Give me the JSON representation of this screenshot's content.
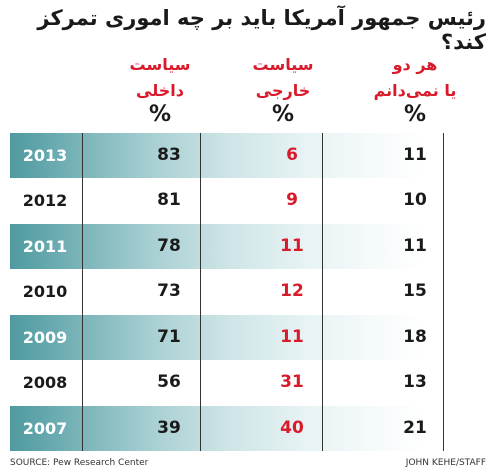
{
  "title": "رئیس جمهور آمریکا باید بر چه اموری تمرکز کند؟",
  "headers": [
    {
      "line1": "سیاست",
      "line2": "داخلی",
      "unit": "%"
    },
    {
      "line1": "سیاست",
      "line2": "خارجی",
      "unit": "%"
    },
    {
      "line1": "هر دو",
      "line2": "یا نمی‌دانم",
      "unit": "%"
    }
  ],
  "chart_data": {
    "type": "table",
    "title": "رئیس جمهور آمریکا باید بر چه اموری تمرکز کند؟",
    "columns": [
      "سیاست داخلی %",
      "سیاست خارجی %",
      "هر دو یا نمی‌دانم %"
    ],
    "rows": [
      {
        "year": "2013",
        "domestic": 83,
        "foreign": 6,
        "both_dont_know": 11
      },
      {
        "year": "2012",
        "domestic": 81,
        "foreign": 9,
        "both_dont_know": 10
      },
      {
        "year": "2011",
        "domestic": 78,
        "foreign": 11,
        "both_dont_know": 11
      },
      {
        "year": "2010",
        "domestic": 73,
        "foreign": 12,
        "both_dont_know": 15
      },
      {
        "year": "2009",
        "domestic": 71,
        "foreign": 11,
        "both_dont_know": 18
      },
      {
        "year": "2008",
        "domestic": 56,
        "foreign": 31,
        "both_dont_know": 13
      },
      {
        "year": "2007",
        "domestic": 39,
        "foreign": 40,
        "both_dont_know": 21
      }
    ]
  },
  "colors": {
    "band": "#4f9aa0",
    "accent_red": "#d81a2a"
  },
  "source": "SOURCE: Pew Research Center",
  "credit": "JOHN KEHE/STAFF"
}
